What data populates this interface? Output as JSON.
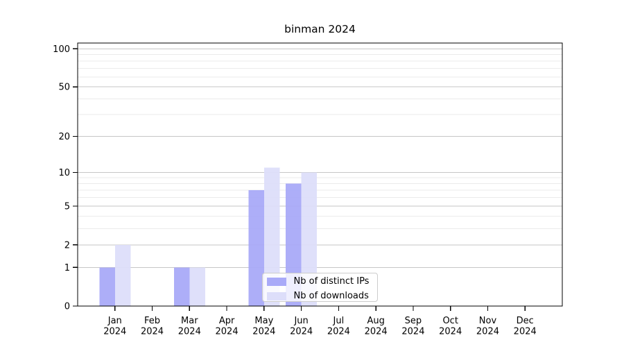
{
  "style": {
    "background": "#ffffff",
    "axis_color": "#000000",
    "major_grid": "#c6c6c6",
    "minor_grid": "#ebebeb",
    "legend_border": "#cccccc"
  },
  "chart_data": {
    "type": "bar",
    "title": "binman 2024",
    "categories": [
      "Jan 2024",
      "Feb 2024",
      "Mar 2024",
      "Apr 2024",
      "May 2024",
      "Jun 2024",
      "Jul 2024",
      "Aug 2024",
      "Sep 2024",
      "Oct 2024",
      "Nov 2024",
      "Dec 2024"
    ],
    "series": [
      {
        "name": "Nb of distinct IPs",
        "color": "#a9aaf8",
        "values": [
          1,
          0,
          1,
          0,
          7,
          8,
          0,
          0,
          0,
          0,
          0,
          0
        ]
      },
      {
        "name": "Nb of downloads",
        "color": "#dddefa",
        "values": [
          2,
          0,
          1,
          0,
          11,
          10,
          0,
          0,
          0,
          0,
          0,
          0
        ]
      }
    ],
    "yscale": "log1p",
    "ylim": [
      0,
      110
    ],
    "y_ticks": [
      0,
      1,
      2,
      5,
      10,
      20,
      50,
      100
    ],
    "y_minor_gridlines": [
      3,
      4,
      6,
      7,
      8,
      9,
      30,
      40,
      60,
      70,
      80,
      90
    ],
    "grid": true,
    "xlabel": "",
    "ylabel": "",
    "legend_position": "lower center"
  }
}
